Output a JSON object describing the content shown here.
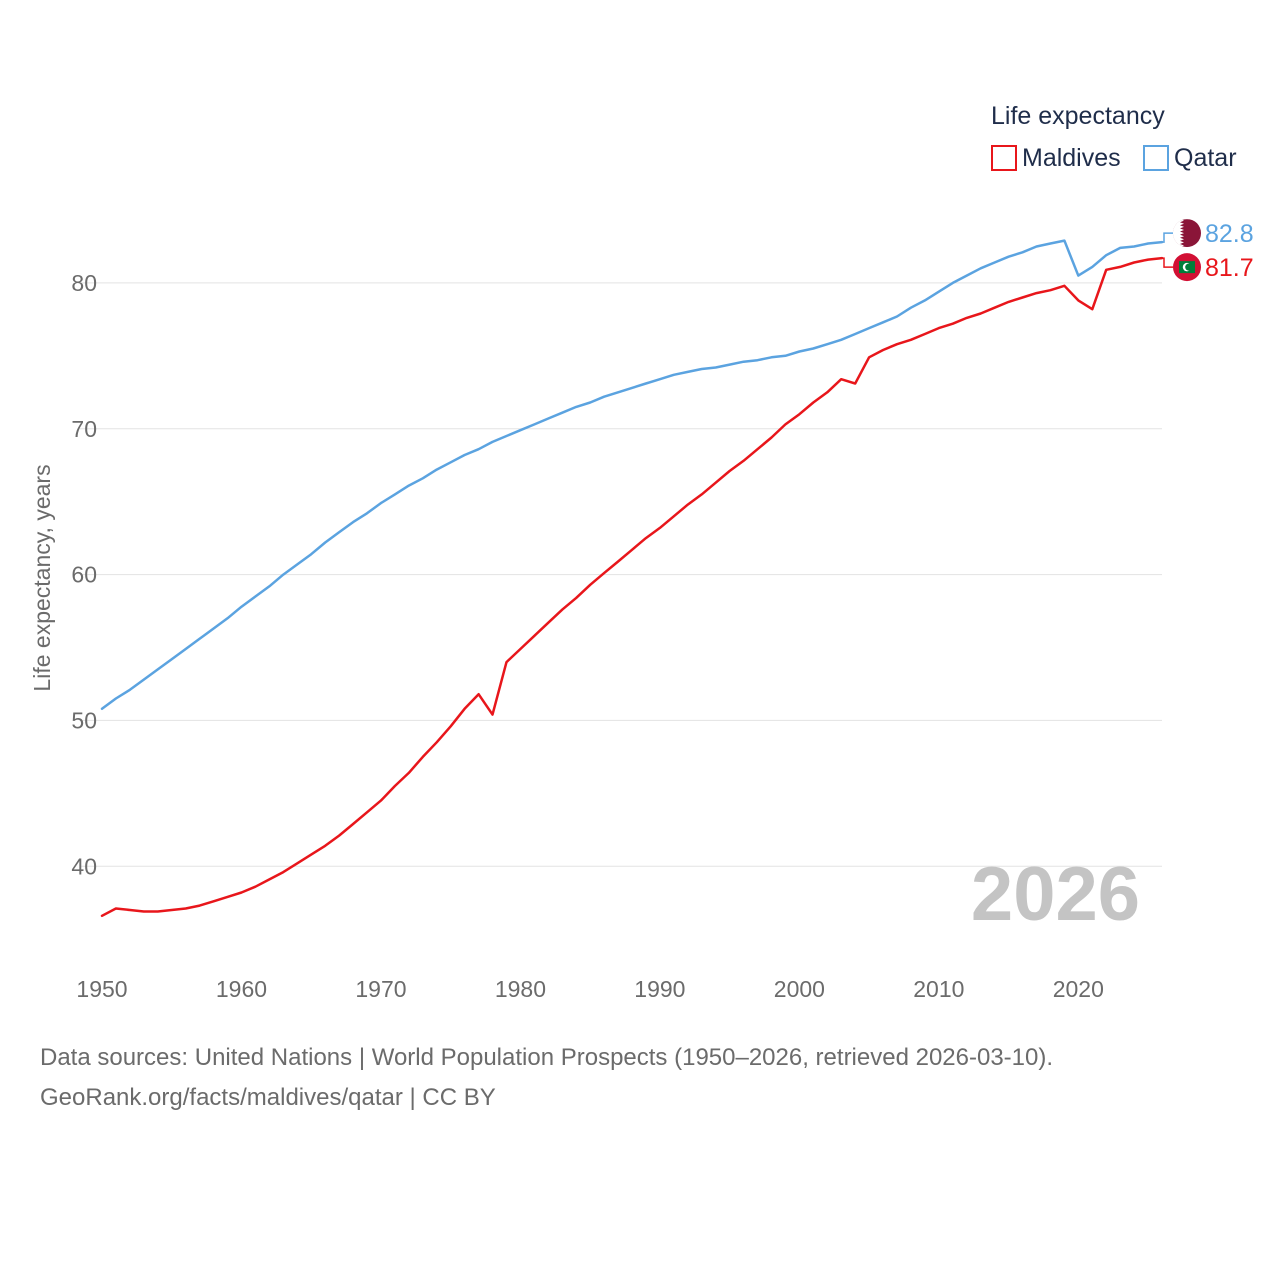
{
  "chart_data": {
    "type": "line",
    "title": "",
    "xlabel": "",
    "ylabel": "Life expectancy, years",
    "xlim": [
      1950,
      2026
    ],
    "ylim": [
      34.6,
      85
    ],
    "x_ticks": [
      1950,
      1960,
      1970,
      1980,
      1990,
      2000,
      2010,
      2020
    ],
    "x_tick_labels": [
      "1950",
      "1960",
      "1970",
      "1980",
      "1990",
      "2000",
      "2010",
      "2020"
    ],
    "y_ticks": [
      40,
      50,
      60,
      70,
      80
    ],
    "y_tick_labels": [
      "40",
      "50",
      "60",
      "70",
      "80"
    ],
    "grid": true,
    "legend": {
      "title": "Life expectancy",
      "position": "top-right"
    },
    "current_year_label": "2026",
    "series": [
      {
        "name": "Maldives",
        "color": "#e8161b",
        "end_value_label": "81.7",
        "flag": "maldives-flag",
        "points": [
          [
            1950,
            36.6
          ],
          [
            1951,
            37.1
          ],
          [
            1952,
            37.0
          ],
          [
            1953,
            36.9
          ],
          [
            1954,
            36.9
          ],
          [
            1955,
            37.0
          ],
          [
            1956,
            37.1
          ],
          [
            1957,
            37.3
          ],
          [
            1958,
            37.6
          ],
          [
            1959,
            37.9
          ],
          [
            1960,
            38.2
          ],
          [
            1961,
            38.6
          ],
          [
            1962,
            39.1
          ],
          [
            1963,
            39.6
          ],
          [
            1964,
            40.2
          ],
          [
            1965,
            40.8
          ],
          [
            1966,
            41.4
          ],
          [
            1967,
            42.1
          ],
          [
            1968,
            42.9
          ],
          [
            1969,
            43.7
          ],
          [
            1970,
            44.5
          ],
          [
            1971,
            45.5
          ],
          [
            1972,
            46.4
          ],
          [
            1973,
            47.5
          ],
          [
            1974,
            48.5
          ],
          [
            1975,
            49.6
          ],
          [
            1976,
            50.8
          ],
          [
            1977,
            51.8
          ],
          [
            1978,
            50.4
          ],
          [
            1979,
            54.0
          ],
          [
            1980,
            54.9
          ],
          [
            1981,
            55.8
          ],
          [
            1982,
            56.7
          ],
          [
            1983,
            57.6
          ],
          [
            1984,
            58.4
          ],
          [
            1985,
            59.3
          ],
          [
            1986,
            60.1
          ],
          [
            1987,
            60.9
          ],
          [
            1988,
            61.7
          ],
          [
            1989,
            62.5
          ],
          [
            1990,
            63.2
          ],
          [
            1991,
            64.0
          ],
          [
            1992,
            64.8
          ],
          [
            1993,
            65.5
          ],
          [
            1994,
            66.3
          ],
          [
            1995,
            67.1
          ],
          [
            1996,
            67.8
          ],
          [
            1997,
            68.6
          ],
          [
            1998,
            69.4
          ],
          [
            1999,
            70.3
          ],
          [
            2000,
            71.0
          ],
          [
            2001,
            71.8
          ],
          [
            2002,
            72.5
          ],
          [
            2003,
            73.4
          ],
          [
            2004,
            73.1
          ],
          [
            2005,
            74.9
          ],
          [
            2006,
            75.4
          ],
          [
            2007,
            75.8
          ],
          [
            2008,
            76.1
          ],
          [
            2009,
            76.5
          ],
          [
            2010,
            76.9
          ],
          [
            2011,
            77.2
          ],
          [
            2012,
            77.6
          ],
          [
            2013,
            77.9
          ],
          [
            2014,
            78.3
          ],
          [
            2015,
            78.7
          ],
          [
            2016,
            79.0
          ],
          [
            2017,
            79.3
          ],
          [
            2018,
            79.5
          ],
          [
            2019,
            79.8
          ],
          [
            2020,
            78.8
          ],
          [
            2021,
            78.2
          ],
          [
            2022,
            80.9
          ],
          [
            2023,
            81.1
          ],
          [
            2024,
            81.4
          ],
          [
            2025,
            81.6
          ],
          [
            2026,
            81.7
          ]
        ]
      },
      {
        "name": "Qatar",
        "color": "#5ba3e0",
        "end_value_label": "82.8",
        "flag": "qatar-flag",
        "points": [
          [
            1950,
            50.8
          ],
          [
            1951,
            51.5
          ],
          [
            1952,
            52.1
          ],
          [
            1953,
            52.8
          ],
          [
            1954,
            53.5
          ],
          [
            1955,
            54.2
          ],
          [
            1956,
            54.9
          ],
          [
            1957,
            55.6
          ],
          [
            1958,
            56.3
          ],
          [
            1959,
            57.0
          ],
          [
            1960,
            57.8
          ],
          [
            1961,
            58.5
          ],
          [
            1962,
            59.2
          ],
          [
            1963,
            60.0
          ],
          [
            1964,
            60.7
          ],
          [
            1965,
            61.4
          ],
          [
            1966,
            62.2
          ],
          [
            1967,
            62.9
          ],
          [
            1968,
            63.6
          ],
          [
            1969,
            64.2
          ],
          [
            1970,
            64.9
          ],
          [
            1971,
            65.5
          ],
          [
            1972,
            66.1
          ],
          [
            1973,
            66.6
          ],
          [
            1974,
            67.2
          ],
          [
            1975,
            67.7
          ],
          [
            1976,
            68.2
          ],
          [
            1977,
            68.6
          ],
          [
            1978,
            69.1
          ],
          [
            1979,
            69.5
          ],
          [
            1980,
            69.9
          ],
          [
            1981,
            70.3
          ],
          [
            1982,
            70.7
          ],
          [
            1983,
            71.1
          ],
          [
            1984,
            71.5
          ],
          [
            1985,
            71.8
          ],
          [
            1986,
            72.2
          ],
          [
            1987,
            72.5
          ],
          [
            1988,
            72.8
          ],
          [
            1989,
            73.1
          ],
          [
            1990,
            73.4
          ],
          [
            1991,
            73.7
          ],
          [
            1992,
            73.9
          ],
          [
            1993,
            74.1
          ],
          [
            1994,
            74.2
          ],
          [
            1995,
            74.4
          ],
          [
            1996,
            74.6
          ],
          [
            1997,
            74.7
          ],
          [
            1998,
            74.9
          ],
          [
            1999,
            75.0
          ],
          [
            2000,
            75.3
          ],
          [
            2001,
            75.5
          ],
          [
            2002,
            75.8
          ],
          [
            2003,
            76.1
          ],
          [
            2004,
            76.5
          ],
          [
            2005,
            76.9
          ],
          [
            2006,
            77.3
          ],
          [
            2007,
            77.7
          ],
          [
            2008,
            78.3
          ],
          [
            2009,
            78.8
          ],
          [
            2010,
            79.4
          ],
          [
            2011,
            80.0
          ],
          [
            2012,
            80.5
          ],
          [
            2013,
            81.0
          ],
          [
            2014,
            81.4
          ],
          [
            2015,
            81.8
          ],
          [
            2016,
            82.1
          ],
          [
            2017,
            82.5
          ],
          [
            2018,
            82.7
          ],
          [
            2019,
            82.9
          ],
          [
            2020,
            80.5
          ],
          [
            2021,
            81.1
          ],
          [
            2022,
            81.9
          ],
          [
            2023,
            82.4
          ],
          [
            2024,
            82.5
          ],
          [
            2025,
            82.7
          ],
          [
            2026,
            82.8
          ]
        ]
      }
    ]
  },
  "footer": {
    "source_line": "Data sources: United Nations | World Population Prospects (1950–2026, retrieved 2026-03-10).",
    "credit_line": "GeoRank.org/facts/maldives/qatar | CC BY"
  }
}
